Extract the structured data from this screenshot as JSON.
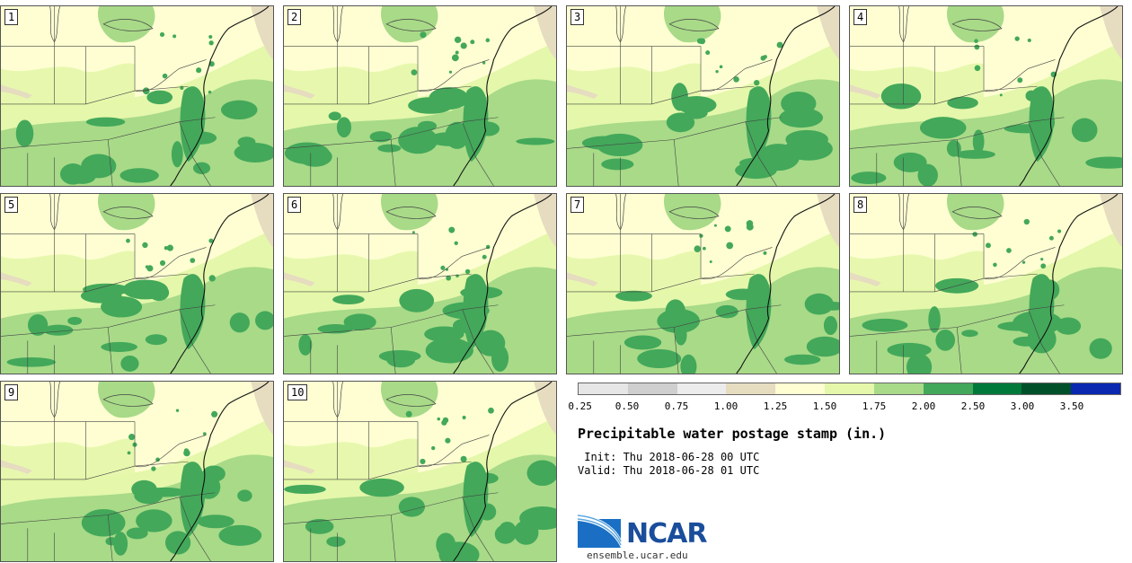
{
  "panels": [
    {
      "label": "1"
    },
    {
      "label": "2"
    },
    {
      "label": "3"
    },
    {
      "label": "4"
    },
    {
      "label": "5"
    },
    {
      "label": "6"
    },
    {
      "label": "7"
    },
    {
      "label": "8"
    },
    {
      "label": "9"
    },
    {
      "label": "10"
    }
  ],
  "colorbar": {
    "colors": [
      "#e6e6e6",
      "#cfcfcf",
      "#ececec",
      "#e6dcc0",
      "#fefed2",
      "#e4f7aa",
      "#a8da88",
      "#43a85a",
      "#00793a",
      "#00502a",
      "#0a28b0"
    ],
    "ticks": [
      "0.25",
      "0.50",
      "0.75",
      "1.00",
      "1.25",
      "1.50",
      "1.75",
      "2.00",
      "2.50",
      "3.00",
      "3.50"
    ]
  },
  "title": "Precipitable water postage stamp (in.)",
  "init": " Init: Thu 2018-06-28 00 UTC",
  "valid": "Valid: Thu 2018-06-28 01 UTC",
  "logo": {
    "text": "NCAR",
    "url": "ensemble.ucar.edu",
    "color": "#1a4e9c"
  }
}
